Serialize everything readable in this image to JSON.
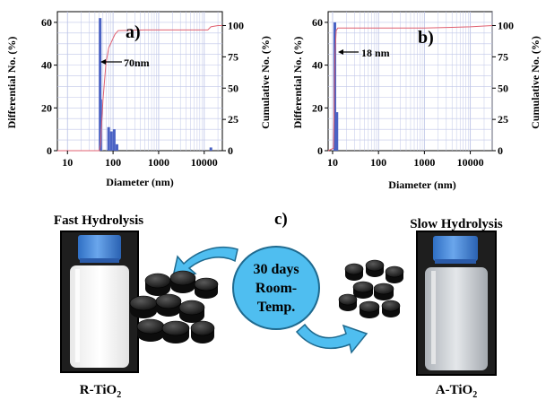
{
  "chart_data": [
    {
      "panel_label": "a)",
      "type": "bar",
      "x_scale": "log",
      "xlabel": "Diameter (nm)",
      "ylabel": "Differential No. (%)",
      "ylabel_right": "Cumulative No. (%)",
      "x_ticks": [
        "10",
        "100",
        "1000",
        "10000"
      ],
      "y_ticks": [
        "0",
        "20",
        "40",
        "60"
      ],
      "y_right_ticks": [
        "0",
        "25",
        "50",
        "75",
        "100"
      ],
      "ylim": [
        0,
        65
      ],
      "xlim": [
        6,
        25000
      ],
      "annotation": "70nm",
      "annotation_x": 50,
      "annotation_y": 40,
      "bars": [
        {
          "x": 52,
          "y": 62
        },
        {
          "x": 53.5,
          "y": 24
        },
        {
          "x": 80,
          "y": 11
        },
        {
          "x": 92,
          "y": 9
        },
        {
          "x": 106,
          "y": 10
        },
        {
          "x": 122,
          "y": 3
        },
        {
          "x": 14000,
          "y": 1.5
        }
      ],
      "cumulative": {
        "x": [
          6,
          50,
          53,
          60,
          70,
          80,
          95,
          110,
          130,
          500,
          5000,
          12000,
          14000,
          20000,
          25000
        ],
        "y": [
          0,
          0,
          5,
          40,
          70,
          82,
          88,
          93,
          96,
          96.5,
          96.5,
          96.5,
          99,
          100,
          100
        ]
      },
      "colors": {
        "bars": "#4a62c4",
        "cumulative": "#e06070",
        "grid": "#bfc6e8"
      }
    },
    {
      "panel_label": "b)",
      "type": "bar",
      "x_scale": "log",
      "xlabel": "Diameter (nm)",
      "ylabel": "Differential No. (%)",
      "ylabel_right": "Cumulative No. (%)",
      "x_ticks": [
        "10",
        "100",
        "1000",
        "10000"
      ],
      "y_ticks": [
        "0",
        "20",
        "40",
        "60"
      ],
      "y_right_ticks": [
        "0",
        "25",
        "50",
        "75",
        "100"
      ],
      "ylim": [
        0,
        65
      ],
      "xlim": [
        8,
        30000
      ],
      "annotation": "18 nm",
      "annotation_x": 11.5,
      "annotation_y": 53,
      "bars": [
        {
          "x": 11.2,
          "y": 60
        },
        {
          "x": 12.4,
          "y": 18
        }
      ],
      "cumulative": {
        "x": [
          8,
          10.5,
          11.2,
          12,
          13,
          100,
          1000,
          10000,
          30000
        ],
        "y": [
          0,
          2,
          75,
          96,
          98,
          98,
          98,
          99,
          100
        ]
      },
      "colors": {
        "bars": "#4a62c4",
        "cumulative": "#e06070",
        "grid": "#bfc6e8"
      }
    }
  ],
  "scheme": {
    "label": "c)",
    "left_title": "Fast Hydrolysis",
    "right_title": "Slow Hydrolysis",
    "left_caption_main": "R-TiO",
    "left_caption_sub": "2",
    "right_caption_main": "A-TiO",
    "right_caption_sub": "2",
    "center_line1": "30 days",
    "center_line2": "Room-",
    "center_line3": "Temp.",
    "colors": {
      "cap": "#3a7fd6",
      "circle": "#4fbef0",
      "arrow": "#4fbef0",
      "pellet": "#151515",
      "white_liquid": "#f7f7f7",
      "clear_liquid": "#c9cdd2"
    }
  }
}
